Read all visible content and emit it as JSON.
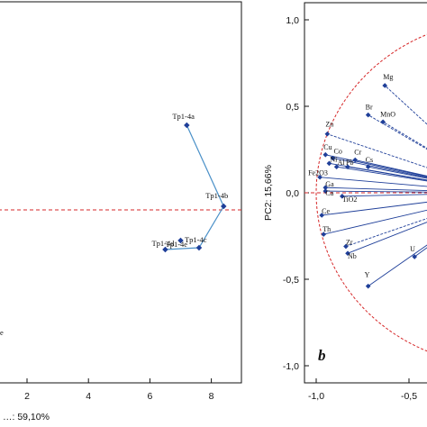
{
  "chart_data": [
    {
      "type": "scatter",
      "subtype": "PCA score plot",
      "xlabel": "…: 59,10%",
      "ylabel": "",
      "xlim": [
        -1.3,
        8.9
      ],
      "ylim": [
        -1.3,
        1.0
      ],
      "x_ticks": [
        "2",
        "4",
        "6",
        "8"
      ],
      "reference_line": {
        "axis": "y",
        "value": 0,
        "style": "dashed",
        "color": "#d62728"
      },
      "points": [
        {
          "label": "Tp1-4a",
          "x": 7.2,
          "y": 0.47
        },
        {
          "label": "Tp1-4b",
          "x": 8.4,
          "y": 0.02
        },
        {
          "label": "Tp1-4c",
          "x": 7.6,
          "y": -0.21
        },
        {
          "label": "Tp1-4d",
          "x": 6.5,
          "y": -0.22
        },
        {
          "label": "Tp1-4e",
          "x": 7.0,
          "y": -0.17
        }
      ],
      "partial_label": "e",
      "connection_order": [
        "Tp1-4a",
        "Tp1-4b",
        "Tp1-4c",
        "Tp1-4d"
      ],
      "point_color": "#1f3f99",
      "line_color": "#4a90c8"
    },
    {
      "type": "scatter",
      "subtype": "PCA loading plot",
      "panel_label": "b",
      "xlabel": "",
      "ylabel": "PC2: 15,66%",
      "xlim": [
        -1.08,
        0.0
      ],
      "ylim": [
        -1.1,
        1.1
      ],
      "x_ticks": [
        "-1,0",
        "-0,5"
      ],
      "y_ticks": [
        "1,0",
        "0,5",
        "0,0",
        "-0,5",
        "-1,0"
      ],
      "unit_circle": {
        "style": "dashed",
        "color": "#d62728"
      },
      "reference_line": {
        "axis": "y",
        "value": 0,
        "style": "dashed",
        "color": "#d62728"
      },
      "variables": [
        {
          "label": "Mg",
          "x": -0.63,
          "y": 0.62
        },
        {
          "label": "Br",
          "x": -0.72,
          "y": 0.45
        },
        {
          "label": "MnO",
          "x": -0.64,
          "y": 0.41
        },
        {
          "label": "Zn",
          "x": -0.94,
          "y": 0.34
        },
        {
          "label": "Cu",
          "x": -0.95,
          "y": 0.22
        },
        {
          "label": "Co",
          "x": -0.91,
          "y": 0.2
        },
        {
          "label": "Cr",
          "x": -0.79,
          "y": 0.19
        },
        {
          "label": "Cs",
          "x": -0.72,
          "y": 0.15
        },
        {
          "label": "Ni",
          "x": -0.93,
          "y": 0.17
        },
        {
          "label": "Al",
          "x": -0.89,
          "y": 0.15
        },
        {
          "label": "Pb",
          "x": -0.83,
          "y": 0.15
        },
        {
          "label": "Fe2O3",
          "x": -0.98,
          "y": 0.09
        },
        {
          "label": "Ga",
          "x": -0.95,
          "y": 0.03
        },
        {
          "label": "Ca",
          "x": -0.95,
          "y": 0.01
        },
        {
          "label": "TiO2",
          "x": -0.86,
          "y": -0.02
        },
        {
          "label": "Ce",
          "x": -0.97,
          "y": -0.13
        },
        {
          "label": "Th",
          "x": -0.96,
          "y": -0.24
        },
        {
          "label": "Zr",
          "x": -0.84,
          "y": -0.31
        },
        {
          "label": "Nb",
          "x": -0.83,
          "y": -0.35
        },
        {
          "label": "U",
          "x": -0.47,
          "y": -0.37
        },
        {
          "label": "Y",
          "x": -0.72,
          "y": -0.54
        }
      ],
      "point_color": "#1f3f99",
      "line_color": "#1f3f99"
    }
  ]
}
